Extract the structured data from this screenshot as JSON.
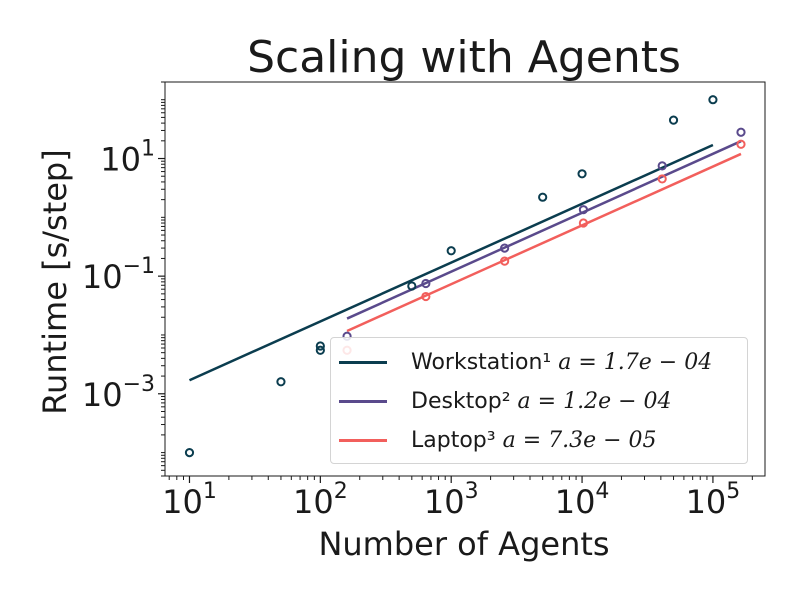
{
  "chart_data": {
    "type": "scatter",
    "title": "Scaling with Agents",
    "xlabel": "Number of Agents",
    "ylabel": "Runtime [s/step]",
    "xscale": "log",
    "yscale": "log",
    "xlim": [
      6.5,
      250000
    ],
    "ylim": [
      4e-05,
      200
    ],
    "x_ticks": [
      {
        "value": 10,
        "base": "10",
        "exp": "1"
      },
      {
        "value": 100,
        "base": "10",
        "exp": "2"
      },
      {
        "value": 1000,
        "base": "10",
        "exp": "3"
      },
      {
        "value": 10000,
        "base": "10",
        "exp": "4"
      },
      {
        "value": 100000,
        "base": "10",
        "exp": "5"
      }
    ],
    "y_ticks": [
      {
        "value": 0.001,
        "base": "10",
        "exp": "−3"
      },
      {
        "value": 0.1,
        "base": "10",
        "exp": "−1"
      },
      {
        "value": 10,
        "base": "10",
        "exp": "1"
      }
    ],
    "grid": false,
    "legend_position": "lower-right",
    "series": [
      {
        "name": "Workstation¹",
        "legend_prefix": "Workstation¹ ",
        "legend_equation": "a = 1.7e − 04",
        "color": "#0b3d4f",
        "points": [
          [
            10,
            0.0001
          ],
          [
            50,
            0.0016
          ],
          [
            100,
            0.0055
          ],
          [
            100,
            0.0065
          ],
          [
            500,
            0.068
          ],
          [
            1000,
            0.27
          ],
          [
            5000,
            2.2
          ],
          [
            10000,
            5.5
          ],
          [
            50000,
            45
          ],
          [
            100000,
            100
          ]
        ],
        "fit_line": [
          [
            10,
            0.0017
          ],
          [
            100000,
            17
          ]
        ]
      },
      {
        "name": "Desktop²",
        "legend_prefix": "Desktop² ",
        "legend_equation": "a = 1.2e − 04",
        "color": "#5a4a8c",
        "points": [
          [
            160,
            0.0095
          ],
          [
            640,
            0.075
          ],
          [
            2560,
            0.3
          ],
          [
            10240,
            1.35
          ],
          [
            40960,
            7.5
          ],
          [
            163840,
            28
          ]
        ],
        "fit_line": [
          [
            160,
            0.019
          ],
          [
            163840,
            19.7
          ]
        ]
      },
      {
        "name": "Laptop³",
        "legend_prefix": "Laptop³ ",
        "legend_equation": "a = 7.3e − 05",
        "color": "#f25f5c",
        "points": [
          [
            160,
            0.0055
          ],
          [
            640,
            0.045
          ],
          [
            2560,
            0.18
          ],
          [
            10240,
            0.8
          ],
          [
            40960,
            4.5
          ],
          [
            163840,
            17.5
          ]
        ],
        "fit_line": [
          [
            160,
            0.0117
          ],
          [
            163840,
            11.96
          ]
        ]
      }
    ]
  }
}
